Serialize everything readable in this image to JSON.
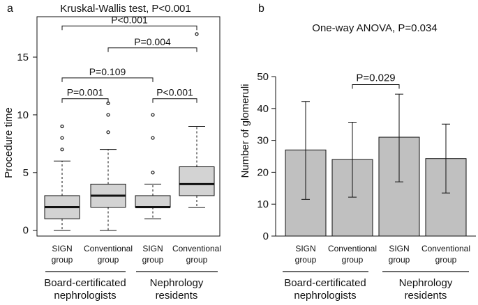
{
  "panel_a": {
    "letter": "a",
    "title": "Kruskal-Wallis test, P<0.001",
    "ylabel": "Procedure time",
    "group_labels": [
      {
        "line1": "Board-certificated",
        "line2": "nephrologists"
      },
      {
        "line1": "Nephrology",
        "line2": "residents"
      }
    ]
  },
  "panel_b": {
    "letter": "b",
    "title": "One-way ANOVA, P=0.034",
    "ylabel": "Number of glomeruli",
    "group_labels": [
      {
        "line1": "Board-certificated",
        "line2": "nephrologists"
      },
      {
        "line1": "Nephrology",
        "line2": "residents"
      }
    ]
  },
  "chart_data": [
    {
      "type": "boxplot",
      "title": "Kruskal-Wallis test, P<0.001",
      "ylabel": "Procedure time",
      "xlabel": "",
      "ylim": [
        -0.5,
        18.5
      ],
      "yticks": [
        0,
        5,
        10,
        15
      ],
      "grid": false,
      "categories": [
        {
          "line1": "SIGN",
          "line2": "group"
        },
        {
          "line1": "Conventional",
          "line2": "group"
        },
        {
          "line1": "SIGN",
          "line2": "group"
        },
        {
          "line1": "Conventional",
          "line2": "group"
        }
      ],
      "boxes": [
        {
          "whisker_low": 0,
          "q1": 1,
          "median": 2,
          "q3": 3,
          "whisker_high": 6,
          "outliers": [
            7,
            8,
            9
          ]
        },
        {
          "whisker_low": 0,
          "q1": 2,
          "median": 3,
          "q3": 4,
          "whisker_high": 7,
          "outliers": [
            8.5,
            10,
            11
          ]
        },
        {
          "whisker_low": 1,
          "q1": 2,
          "median": 2,
          "q3": 3,
          "whisker_high": 4,
          "outliers": [
            5,
            8,
            10
          ]
        },
        {
          "whisker_low": 2,
          "q1": 3,
          "median": 4,
          "q3": 5.5,
          "whisker_high": 9,
          "outliers": [
            17
          ]
        }
      ],
      "comparisons": [
        {
          "from": 0,
          "to": 1,
          "y": 11.4,
          "label": "P=0.001"
        },
        {
          "from": 2,
          "to": 3,
          "y": 11.4,
          "label": "P<0.001"
        },
        {
          "from": 0,
          "to": 2,
          "y": 13.2,
          "label": "P=0.109"
        },
        {
          "from": 1,
          "to": 3,
          "y": 15.8,
          "label": "P=0.004"
        },
        {
          "from": 0,
          "to": 3,
          "y": 17.7,
          "label": "P<0.001"
        }
      ],
      "colors": {
        "box": "#d3d3d3",
        "line": "#111111"
      }
    },
    {
      "type": "bar",
      "title": "One-way ANOVA, P=0.034",
      "ylabel": "Number of glomeruli",
      "xlabel": "",
      "ylim": [
        0,
        50
      ],
      "yticks": [
        0,
        10,
        20,
        30,
        40,
        50
      ],
      "grid": false,
      "categories": [
        {
          "line1": "SIGN",
          "line2": "group"
        },
        {
          "line1": "Conventional",
          "line2": "group"
        },
        {
          "line1": "SIGN",
          "line2": "group"
        },
        {
          "line1": "Conventional",
          "line2": "group"
        }
      ],
      "values": [
        27,
        24,
        31,
        24.3
      ],
      "error_low": [
        11.5,
        12.2,
        17,
        13.5
      ],
      "error_high": [
        42.2,
        35.7,
        44.5,
        35.1
      ],
      "comparisons": [
        {
          "from": 1,
          "to": 2,
          "y": 47.5,
          "label": "P=0.029"
        }
      ],
      "colors": {
        "bar": "#c0c0c0",
        "line": "#111111"
      }
    }
  ]
}
